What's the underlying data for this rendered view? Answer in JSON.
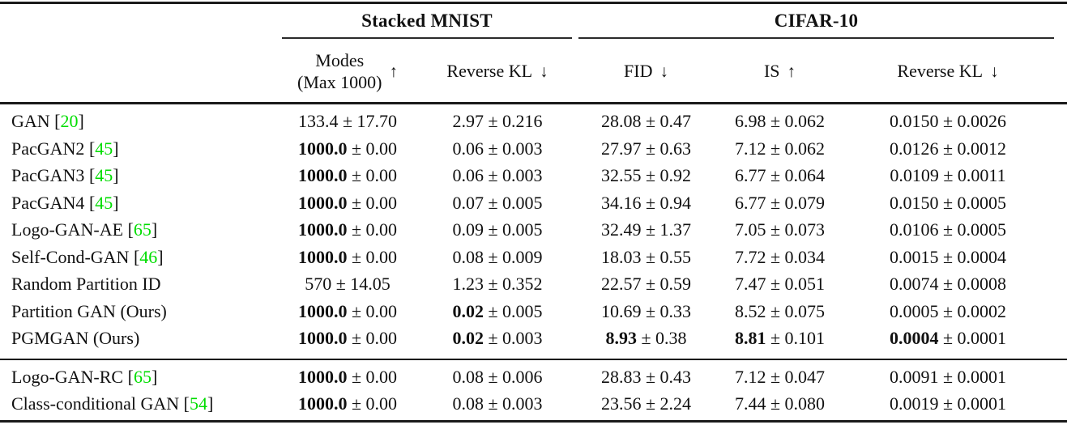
{
  "colors": {
    "citation_green": "#00dd00",
    "text": "#111111"
  },
  "table": {
    "group_headers": [
      {
        "label": "Stacked MNIST"
      },
      {
        "label": "CIFAR-10"
      }
    ],
    "columns": [
      {
        "label": "Modes",
        "sublabel": "(Max 1000)",
        "arrow": "↑"
      },
      {
        "label": "Reverse KL",
        "sublabel": "",
        "arrow": "↓"
      },
      {
        "label": "FID",
        "sublabel": "",
        "arrow": "↓"
      },
      {
        "label": "IS",
        "sublabel": "",
        "arrow": "↑"
      },
      {
        "label": "Reverse KL",
        "sublabel": "",
        "arrow": "↓"
      }
    ],
    "sections": [
      {
        "rows": [
          {
            "method": "GAN",
            "citation": "20",
            "cells": [
              {
                "value": "133.4",
                "error": "17.70",
                "bold": false
              },
              {
                "value": "2.97",
                "error": "0.216",
                "bold": false
              },
              {
                "value": "28.08",
                "error": "0.47",
                "bold": false
              },
              {
                "value": "6.98",
                "error": "0.062",
                "bold": false
              },
              {
                "value": "0.0150",
                "error": "0.0026",
                "bold": false
              }
            ]
          },
          {
            "method": "PacGAN2",
            "citation": "45",
            "cells": [
              {
                "value": "1000.0",
                "error": "0.00",
                "bold": true
              },
              {
                "value": "0.06",
                "error": "0.003",
                "bold": false
              },
              {
                "value": "27.97",
                "error": "0.63",
                "bold": false
              },
              {
                "value": "7.12",
                "error": "0.062",
                "bold": false
              },
              {
                "value": "0.0126",
                "error": "0.0012",
                "bold": false
              }
            ]
          },
          {
            "method": "PacGAN3",
            "citation": "45",
            "cells": [
              {
                "value": "1000.0",
                "error": "0.00",
                "bold": true
              },
              {
                "value": "0.06",
                "error": "0.003",
                "bold": false
              },
              {
                "value": "32.55",
                "error": "0.92",
                "bold": false
              },
              {
                "value": "6.77",
                "error": "0.064",
                "bold": false
              },
              {
                "value": "0.0109",
                "error": "0.0011",
                "bold": false
              }
            ]
          },
          {
            "method": "PacGAN4",
            "citation": "45",
            "cells": [
              {
                "value": "1000.0",
                "error": "0.00",
                "bold": true
              },
              {
                "value": "0.07",
                "error": "0.005",
                "bold": false
              },
              {
                "value": "34.16",
                "error": "0.94",
                "bold": false
              },
              {
                "value": "6.77",
                "error": "0.079",
                "bold": false
              },
              {
                "value": "0.0150",
                "error": "0.0005",
                "bold": false
              }
            ]
          },
          {
            "method": "Logo-GAN-AE",
            "citation": "65",
            "cells": [
              {
                "value": "1000.0",
                "error": "0.00",
                "bold": true
              },
              {
                "value": "0.09",
                "error": "0.005",
                "bold": false
              },
              {
                "value": "32.49",
                "error": "1.37",
                "bold": false
              },
              {
                "value": "7.05",
                "error": "0.073",
                "bold": false
              },
              {
                "value": "0.0106",
                "error": "0.0005",
                "bold": false
              }
            ]
          },
          {
            "method": "Self-Cond-GAN",
            "citation": "46",
            "cells": [
              {
                "value": "1000.0",
                "error": "0.00",
                "bold": true
              },
              {
                "value": "0.08",
                "error": "0.009",
                "bold": false
              },
              {
                "value": "18.03",
                "error": "0.55",
                "bold": false
              },
              {
                "value": "7.72",
                "error": "0.034",
                "bold": false
              },
              {
                "value": "0.0015",
                "error": "0.0004",
                "bold": false
              }
            ]
          },
          {
            "method": "Random Partition ID",
            "citation": null,
            "cells": [
              {
                "value": "570",
                "error": "14.05",
                "bold": false
              },
              {
                "value": "1.23",
                "error": "0.352",
                "bold": false
              },
              {
                "value": "22.57",
                "error": "0.59",
                "bold": false
              },
              {
                "value": "7.47",
                "error": "0.051",
                "bold": false
              },
              {
                "value": "0.0074",
                "error": "0.0008",
                "bold": false
              }
            ]
          },
          {
            "method": "Partition GAN (Ours)",
            "citation": null,
            "cells": [
              {
                "value": "1000.0",
                "error": "0.00",
                "bold": true
              },
              {
                "value": "0.02",
                "error": "0.005",
                "bold": true
              },
              {
                "value": "10.69",
                "error": "0.33",
                "bold": false
              },
              {
                "value": "8.52",
                "error": "0.075",
                "bold": false
              },
              {
                "value": "0.0005",
                "error": "0.0002",
                "bold": false
              }
            ]
          },
          {
            "method": "PGMGAN (Ours)",
            "citation": null,
            "cells": [
              {
                "value": "1000.0",
                "error": "0.00",
                "bold": true
              },
              {
                "value": "0.02",
                "error": "0.003",
                "bold": true
              },
              {
                "value": "8.93",
                "error": "0.38",
                "bold": true
              },
              {
                "value": "8.81",
                "error": "0.101",
                "bold": true
              },
              {
                "value": "0.0004",
                "error": "0.0001",
                "bold": true
              }
            ]
          }
        ]
      },
      {
        "rows": [
          {
            "method": "Logo-GAN-RC",
            "citation": "65",
            "cells": [
              {
                "value": "1000.0",
                "error": "0.00",
                "bold": true
              },
              {
                "value": "0.08",
                "error": "0.006",
                "bold": false
              },
              {
                "value": "28.83",
                "error": "0.43",
                "bold": false
              },
              {
                "value": "7.12",
                "error": "0.047",
                "bold": false
              },
              {
                "value": "0.0091",
                "error": "0.0001",
                "bold": false
              }
            ]
          },
          {
            "method": "Class-conditional GAN",
            "citation": "54",
            "cells": [
              {
                "value": "1000.0",
                "error": "0.00",
                "bold": true
              },
              {
                "value": "0.08",
                "error": "0.003",
                "bold": false
              },
              {
                "value": "23.56",
                "error": "2.24",
                "bold": false
              },
              {
                "value": "7.44",
                "error": "0.080",
                "bold": false
              },
              {
                "value": "0.0019",
                "error": "0.0001",
                "bold": false
              }
            ]
          }
        ]
      }
    ],
    "plus_minus": "±"
  }
}
